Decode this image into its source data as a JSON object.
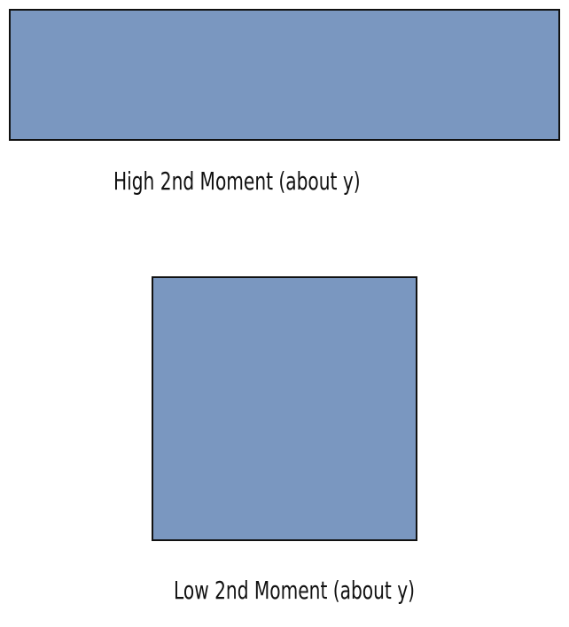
{
  "diagram": {
    "fill_color": "#7a97c0",
    "stroke_color": "#111111",
    "shapes": [
      {
        "name": "wide-rectangle",
        "label": "High 2nd Moment (about y)"
      },
      {
        "name": "square",
        "label": "Low 2nd Moment (about y)"
      }
    ]
  }
}
